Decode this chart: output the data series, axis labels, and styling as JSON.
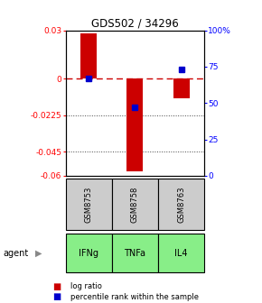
{
  "title": "GDS502 / 34296",
  "samples": [
    "GSM8753",
    "GSM8758",
    "GSM8763"
  ],
  "agents": [
    "IFNg",
    "TNFa",
    "IL4"
  ],
  "log_ratios": [
    0.028,
    -0.057,
    -0.012
  ],
  "percentile_ranks": [
    67,
    47,
    73
  ],
  "ylim_left": [
    -0.06,
    0.03
  ],
  "ylim_right": [
    0,
    100
  ],
  "yticks_left": [
    0.03,
    0,
    -0.0225,
    -0.045,
    -0.06
  ],
  "ytick_labels_left": [
    "0.03",
    "0",
    "-0.0225",
    "-0.045",
    "-0.06"
  ],
  "yticks_right": [
    100,
    75,
    50,
    25,
    0
  ],
  "ytick_labels_right": [
    "100%",
    "75",
    "50",
    "25",
    "0"
  ],
  "bar_color": "#cc0000",
  "dot_color": "#0000cc",
  "agent_color": "#88ee88",
  "sample_color": "#cccccc",
  "zero_line_color": "#cc0000",
  "grid_color": "#444444",
  "bar_width": 0.35,
  "dot_size": 4
}
